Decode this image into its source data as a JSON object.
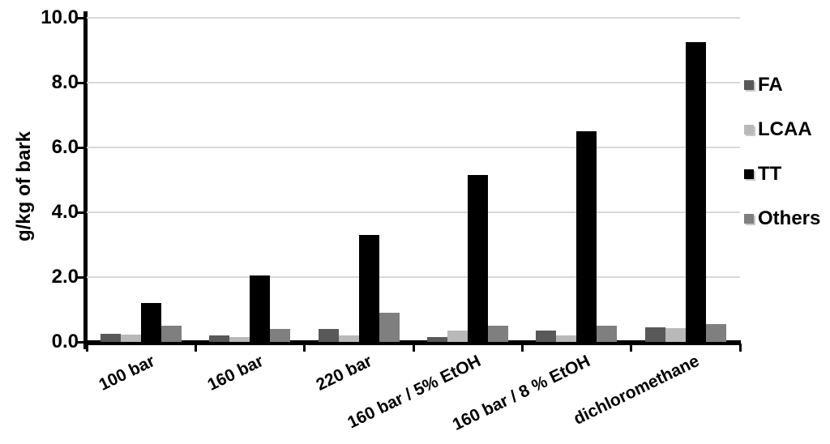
{
  "chart_data": {
    "type": "bar",
    "title": "",
    "ylabel": "g/kg of bark",
    "xlabel": "",
    "ylim": [
      0,
      10
    ],
    "ytick_step": 2,
    "yticks": [
      {
        "value": 10,
        "label": "10.0"
      },
      {
        "value": 8,
        "label": "8.0"
      },
      {
        "value": 6,
        "label": "6.0"
      },
      {
        "value": 4,
        "label": "4.0"
      },
      {
        "value": 2,
        "label": "2.0"
      },
      {
        "value": 0,
        "label": "0.0"
      }
    ],
    "categories": [
      "100 bar",
      "160 bar",
      "220 bar",
      "160 bar / 5% EtOH",
      "160 bar / 8 % EtOH",
      "dichloromethane"
    ],
    "series": [
      {
        "name": "FA",
        "color": "#595959",
        "values": [
          0.25,
          0.2,
          0.4,
          0.15,
          0.35,
          0.45
        ]
      },
      {
        "name": "LCAA",
        "color": "#b9b9b9",
        "values": [
          0.22,
          0.15,
          0.2,
          0.35,
          0.2,
          0.42
        ]
      },
      {
        "name": "TT",
        "color": "#000000",
        "values": [
          1.2,
          2.05,
          3.3,
          5.15,
          6.5,
          9.25
        ]
      },
      {
        "name": "Others",
        "color": "#7f7f7f",
        "values": [
          0.5,
          0.4,
          0.9,
          0.5,
          0.5,
          0.55
        ]
      }
    ],
    "legend": {
      "position": "right",
      "entries": [
        "FA",
        "LCAA",
        "TT",
        "Others"
      ]
    },
    "grid": true,
    "colors": {
      "gridline": "#d9d9d9",
      "axis": "#000000",
      "background": "#ffffff",
      "text": "#000000"
    }
  }
}
